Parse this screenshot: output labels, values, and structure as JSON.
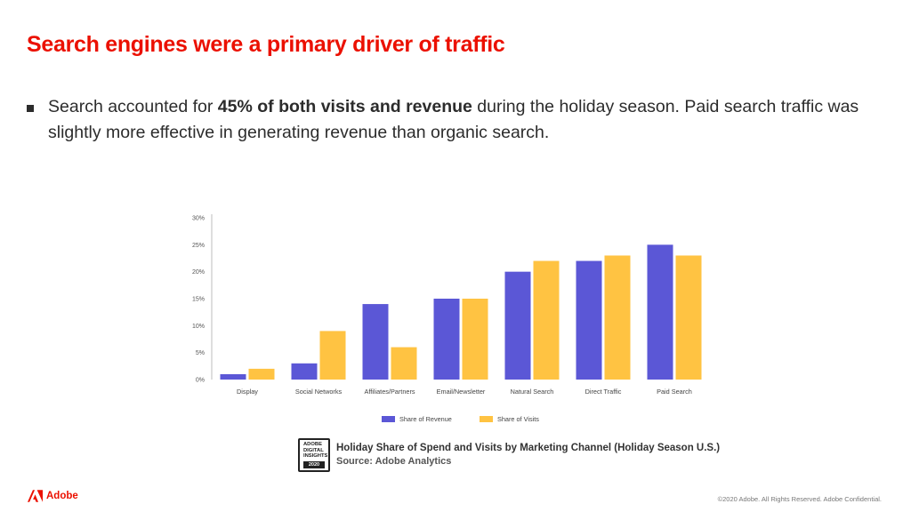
{
  "slide": {
    "title": "Search engines were a primary driver of traffic",
    "bullet": {
      "pre": "Search accounted for ",
      "bold": "45% of both visits and revenue",
      "post": " during the holiday season. Paid search traffic was slightly more effective in generating revenue than organic search."
    }
  },
  "badge": {
    "line1": "ADOBE",
    "line2": "DIGITAL",
    "line3": "INSIGHTS",
    "year": "2020"
  },
  "caption": "Holiday Share of Spend and Visits by Marketing Channel (Holiday Season U.S.)",
  "source": "Source: Adobe Analytics",
  "footer": {
    "logo_text": "Adobe",
    "logo_icon": "adobe-logo-icon",
    "copyright": "©2020 Adobe. All Rights Reserved. Adobe Confidential."
  },
  "colors": {
    "accent": "#eb1000",
    "revenue": "#5b57d6",
    "visits": "#ffc342"
  },
  "chart_data": {
    "type": "bar",
    "categories": [
      "Display",
      "Social Networks",
      "Affiliates/Partners",
      "Email/Newsletter",
      "Natural Search",
      "Direct Traffic",
      "Paid Search"
    ],
    "series": [
      {
        "name": "Share of Revenue",
        "values": [
          1,
          3,
          14,
          15,
          20,
          22,
          25
        ]
      },
      {
        "name": "Share of Visits",
        "values": [
          2,
          9,
          6,
          15,
          22,
          23,
          23
        ]
      }
    ],
    "yticks": [
      "0%",
      "5%",
      "10%",
      "15%",
      "20%",
      "25%",
      "30%"
    ],
    "ylim": [
      0,
      30
    ],
    "grid": false,
    "legend": "bottom"
  }
}
